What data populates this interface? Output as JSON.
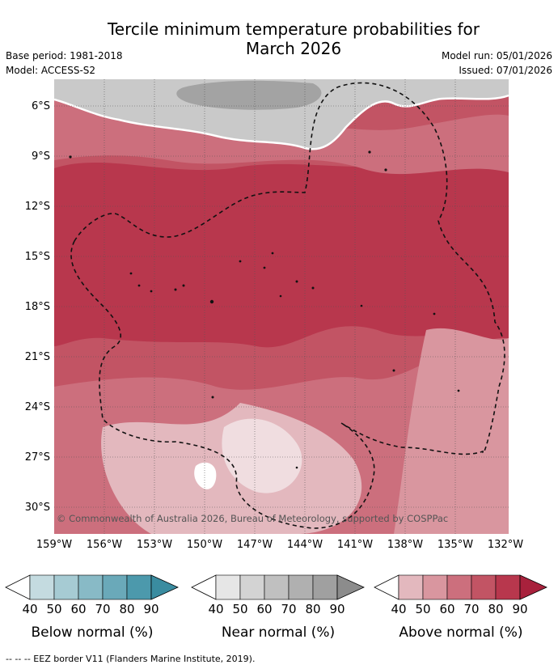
{
  "title_line1": "Tercile minimum temperature probabilities for",
  "title_line2": "March 2026",
  "base_period": "Base period: 1981-2018",
  "model": "Model: ACCESS-S2",
  "model_run": "Model run: 05/01/2026",
  "issued": "Issued: 07/01/2026",
  "copyright": "© Commonwealth of Australia 2026, Bureau of Meteorology, supported by COSPPac",
  "lat_labels": [
    "6°S",
    "9°S",
    "12°S",
    "15°S",
    "18°S",
    "21°S",
    "24°S",
    "27°S",
    "30°S"
  ],
  "lon_labels": [
    "159°W",
    "156°W",
    "153°W",
    "150°W",
    "147°W",
    "144°W",
    "141°W",
    "138°W",
    "135°W",
    "132°W"
  ],
  "legends": [
    {
      "caption": "Below normal (%)",
      "ticks": [
        "40",
        "50",
        "60",
        "70",
        "80",
        "90"
      ],
      "colors": [
        "#c4dbe0",
        "#a6cbd3",
        "#88bac6",
        "#6aa9b9",
        "#4c99ac"
      ]
    },
    {
      "caption": "Near normal (%)",
      "ticks": [
        "40",
        "50",
        "60",
        "70",
        "80",
        "90"
      ],
      "colors": [
        "#e6e6e6",
        "#d3d3d3",
        "#c0c0c0",
        "#b0b0b0",
        "#a0a0a0"
      ]
    },
    {
      "caption": "Above normal (%)",
      "ticks": [
        "40",
        "50",
        "60",
        "70",
        "80",
        "90"
      ],
      "colors": [
        "#e3b8be",
        "#d9969f",
        "#cc6f7d",
        "#c25464",
        "#b8374d"
      ]
    }
  ],
  "footnote": "--  --  -- EEZ border V11 (Flanders Marine Institute, 2019)."
}
